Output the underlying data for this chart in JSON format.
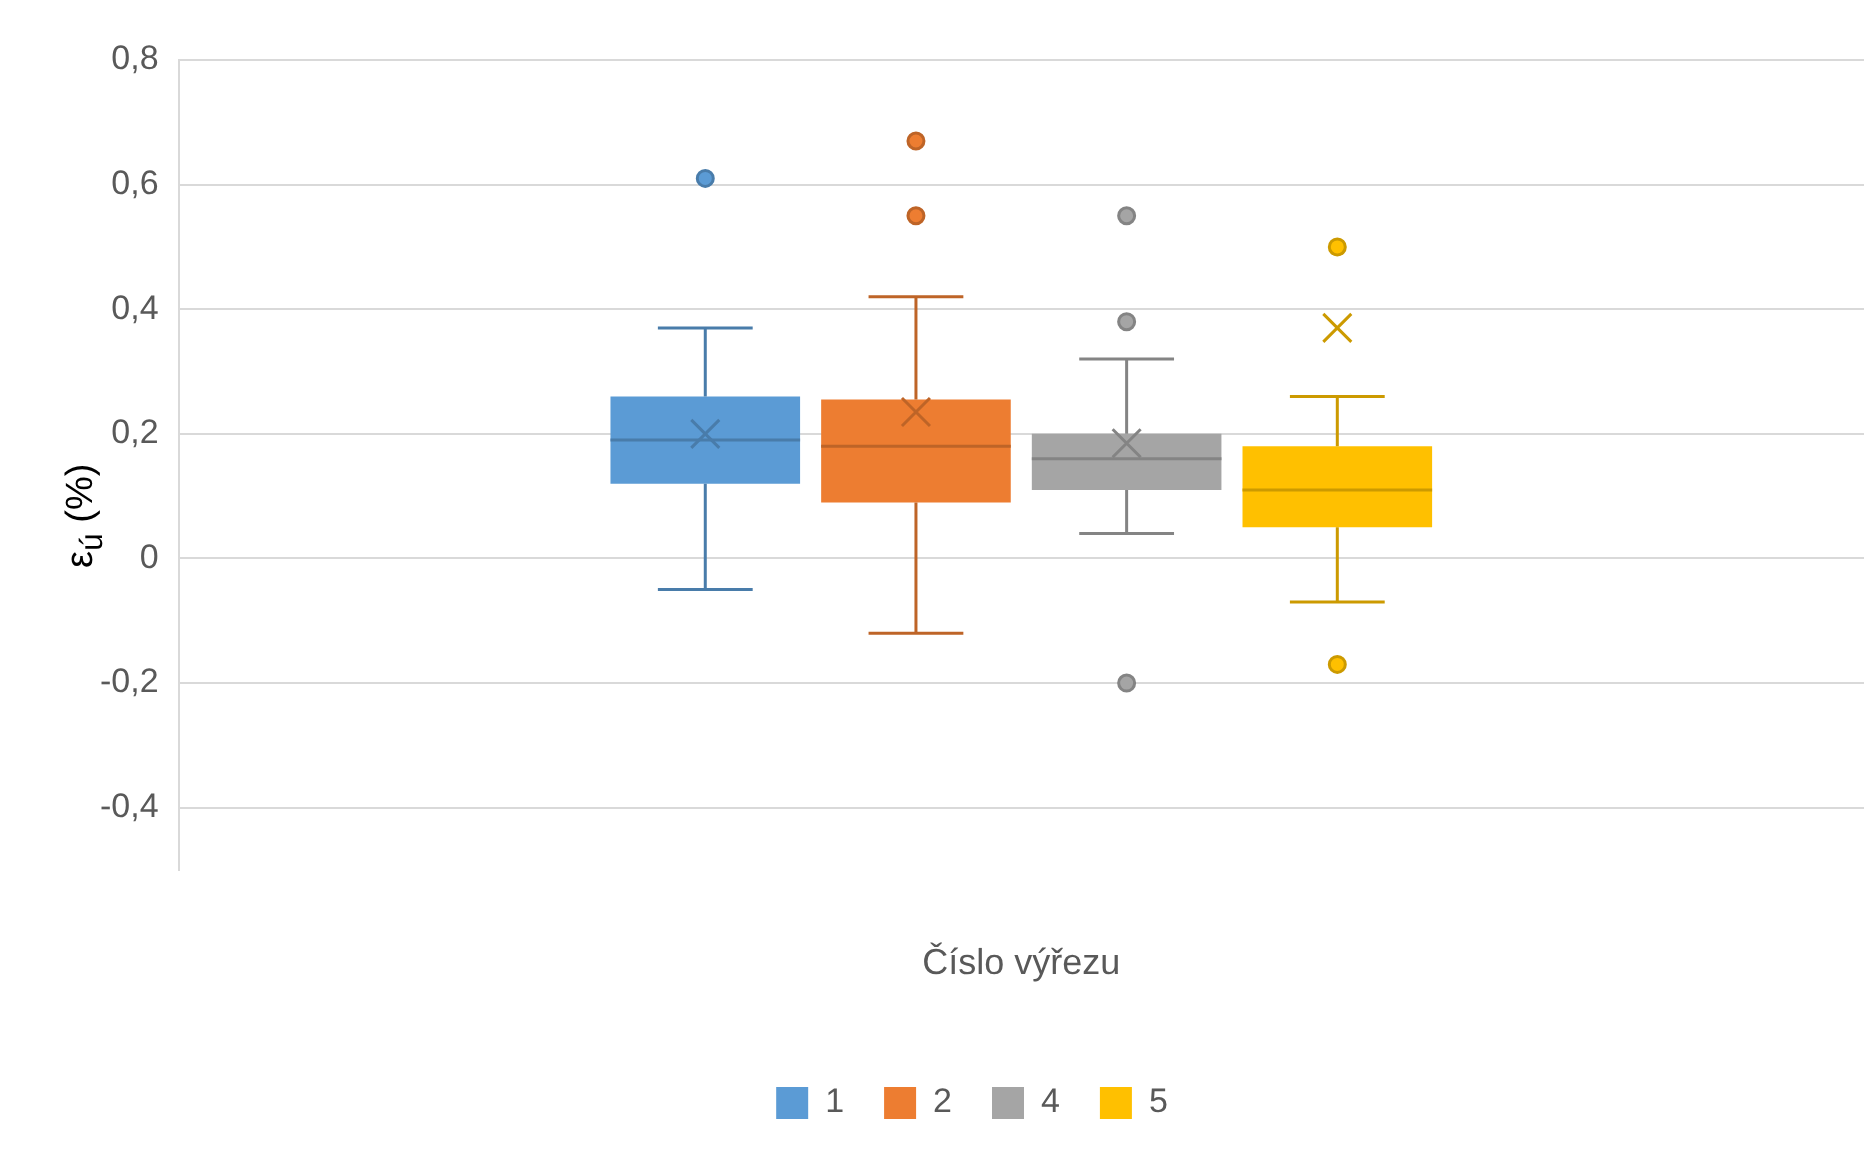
{
  "chart_data": {
    "type": "box",
    "categories": [
      null
    ],
    "xlabel": "Číslo výřezu",
    "ylabel": "ε$_{ú}$ (%)",
    "ylim": [
      -0.5,
      0.8
    ],
    "yticks": [
      {
        "value": -0.4,
        "label": "-0,4"
      },
      {
        "value": -0.2,
        "label": "-0,2"
      },
      {
        "value": 0,
        "label": "0"
      },
      {
        "value": 0.2,
        "label": "0,2"
      },
      {
        "value": 0.4,
        "label": "0,4"
      },
      {
        "value": 0.6,
        "label": "0,6"
      },
      {
        "value": 0.8,
        "label": "0,8"
      }
    ],
    "grid": "y",
    "legend": "bottom",
    "series": [
      {
        "name": "1",
        "color": "#5b9bd5",
        "boxes": [
          {
            "low": -0.05,
            "q1": 0.12,
            "median": 0.19,
            "q3": 0.26,
            "high": 0.37,
            "mean": 0.2,
            "outliers": [
              0.61
            ]
          }
        ]
      },
      {
        "name": "2",
        "color": "#ed7d31",
        "boxes": [
          {
            "low": -0.12,
            "q1": 0.09,
            "median": 0.18,
            "q3": 0.255,
            "high": 0.42,
            "mean": 0.235,
            "outliers": [
              0.55,
              0.67
            ]
          }
        ]
      },
      {
        "name": "4",
        "color": "#a5a5a5",
        "boxes": [
          {
            "low": 0.04,
            "q1": 0.11,
            "median": 0.16,
            "q3": 0.2,
            "high": 0.32,
            "mean": 0.185,
            "outliers": [
              -0.2,
              0.38,
              0.55
            ]
          }
        ]
      },
      {
        "name": "5",
        "color": "#ffc000",
        "boxes": [
          {
            "low": -0.07,
            "q1": 0.05,
            "median": 0.11,
            "q3": 0.18,
            "high": 0.26,
            "mean": 0.37,
            "outliers": [
              -0.17,
              0.5
            ]
          }
        ]
      }
    ]
  }
}
